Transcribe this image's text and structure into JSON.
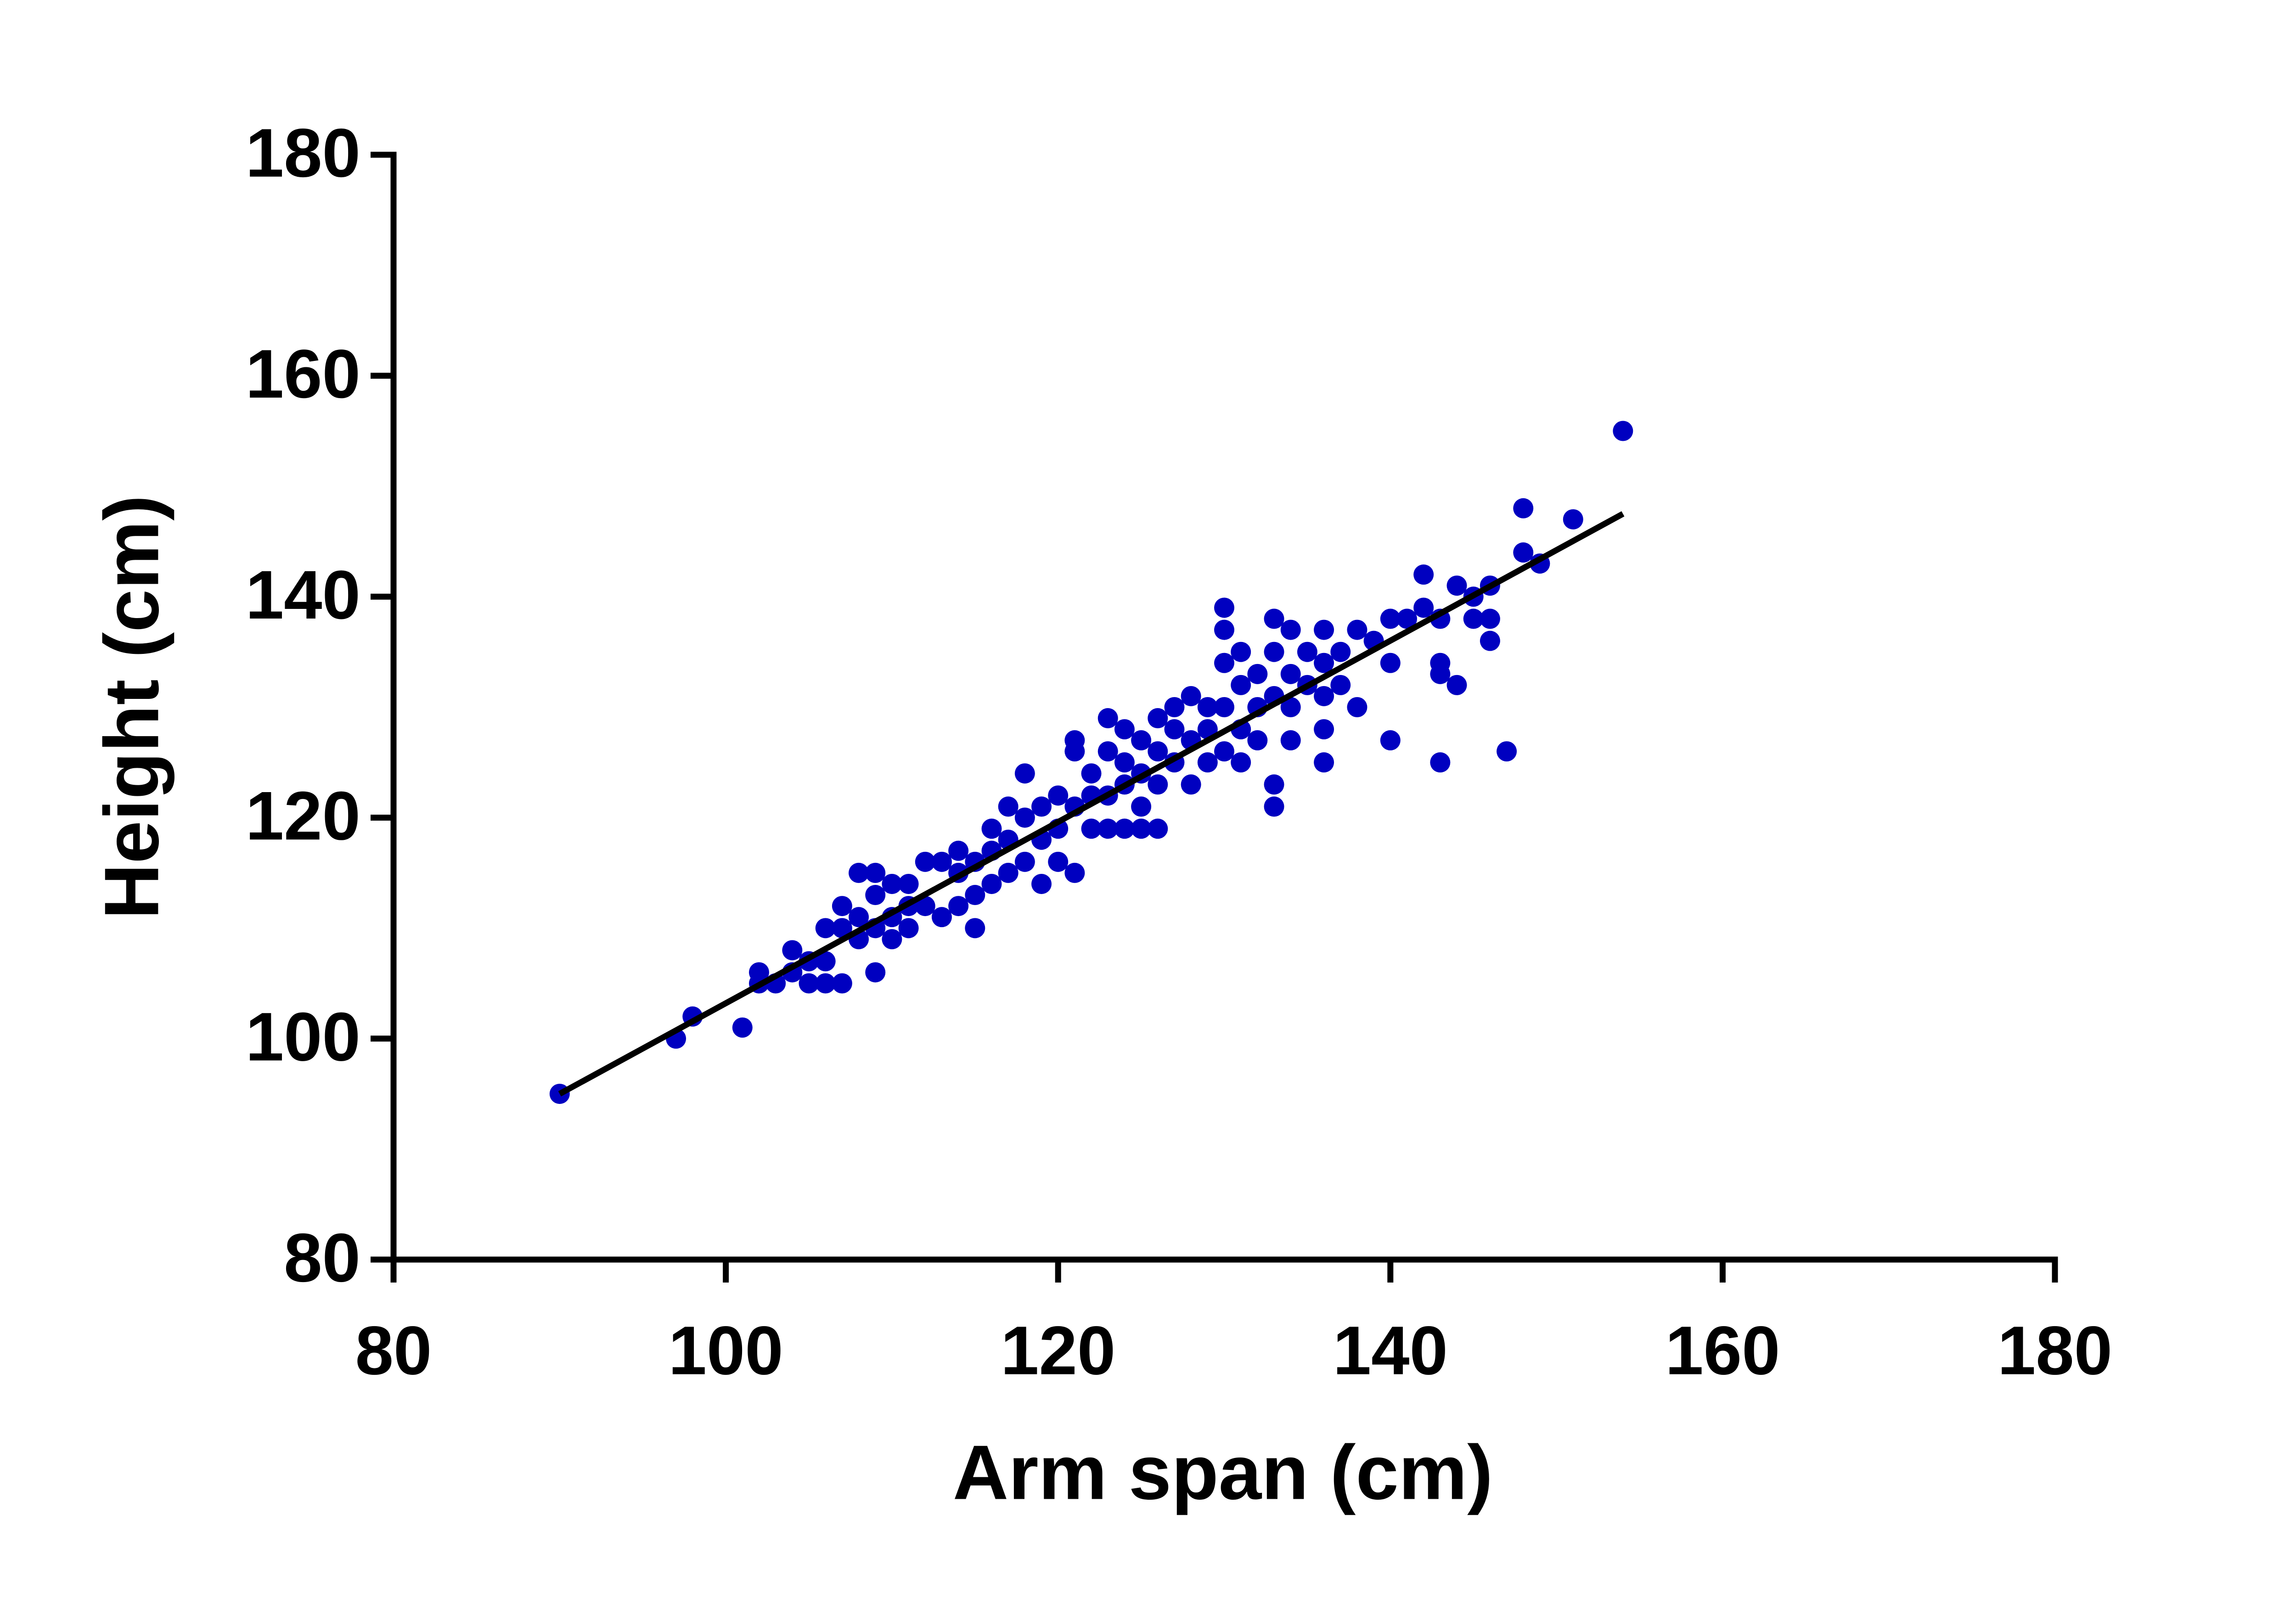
{
  "chart_data": {
    "type": "scatter",
    "x_label": "Arm span (cm)",
    "y_label": "Height (cm)",
    "color": "#0000c0",
    "x": [
      90,
      97,
      98,
      101,
      102,
      102,
      103,
      104,
      104,
      105,
      105,
      106,
      106,
      106,
      107,
      107,
      107,
      108,
      108,
      108,
      109,
      109,
      109,
      109,
      110,
      110,
      110,
      111,
      111,
      111,
      112,
      112,
      113,
      113,
      114,
      114,
      114,
      115,
      115,
      115,
      116,
      116,
      116,
      117,
      117,
      117,
      118,
      118,
      118,
      119,
      119,
      119,
      120,
      120,
      120,
      121,
      121,
      121,
      121,
      122,
      122,
      122,
      123,
      123,
      123,
      123,
      124,
      124,
      124,
      124,
      125,
      125,
      125,
      125,
      126,
      126,
      126,
      126,
      127,
      127,
      127,
      128,
      128,
      128,
      129,
      129,
      129,
      130,
      130,
      130,
      130,
      130,
      131,
      131,
      131,
      131,
      132,
      132,
      132,
      133,
      133,
      133,
      133,
      133,
      134,
      134,
      134,
      134,
      135,
      135,
      136,
      136,
      136,
      136,
      136,
      137,
      137,
      138,
      138,
      139,
      140,
      140,
      140,
      141,
      142,
      142,
      143,
      143,
      143,
      143,
      144,
      144,
      145,
      145,
      146,
      146,
      146,
      147,
      148,
      148,
      149,
      151,
      154
    ],
    "y": [
      95,
      100,
      102,
      101,
      106,
      105,
      105,
      108,
      106,
      107,
      105,
      105,
      110,
      107,
      105,
      110,
      112,
      115,
      111,
      109,
      106,
      115,
      113,
      110,
      114,
      111,
      109,
      112,
      114,
      110,
      116,
      112,
      116,
      111,
      117,
      112,
      115,
      116,
      110,
      113,
      117,
      114,
      119,
      118,
      121,
      115,
      124,
      120,
      116,
      121,
      114,
      118,
      122,
      116,
      119,
      127,
      121,
      115,
      126,
      122,
      119,
      124,
      129,
      126,
      122,
      119,
      128,
      125,
      119,
      123,
      127,
      124,
      121,
      119,
      129,
      126,
      123,
      119,
      130,
      128,
      125,
      131,
      127,
      123,
      128,
      125,
      130,
      139,
      137,
      134,
      130,
      126,
      135,
      132,
      128,
      125,
      133,
      130,
      127,
      138,
      135,
      131,
      123,
      121,
      137,
      133,
      130,
      127,
      135,
      132,
      137,
      134,
      131,
      128,
      125,
      135,
      132,
      137,
      130,
      136,
      138,
      134,
      127,
      138,
      142,
      139,
      138,
      134,
      133,
      125,
      141,
      132,
      140,
      138,
      141,
      138,
      136,
      126,
      148,
      144,
      143,
      147,
      155
    ],
    "fit_line": {
      "x": [
        90,
        154
      ],
      "y": [
        95,
        147.5
      ],
      "color": "#000000"
    },
    "xlim": [
      80,
      180
    ],
    "ylim": [
      80,
      180
    ],
    "xticks": [
      80,
      100,
      120,
      140,
      160,
      180
    ],
    "yticks": [
      80,
      100,
      120,
      140,
      160,
      180
    ]
  }
}
